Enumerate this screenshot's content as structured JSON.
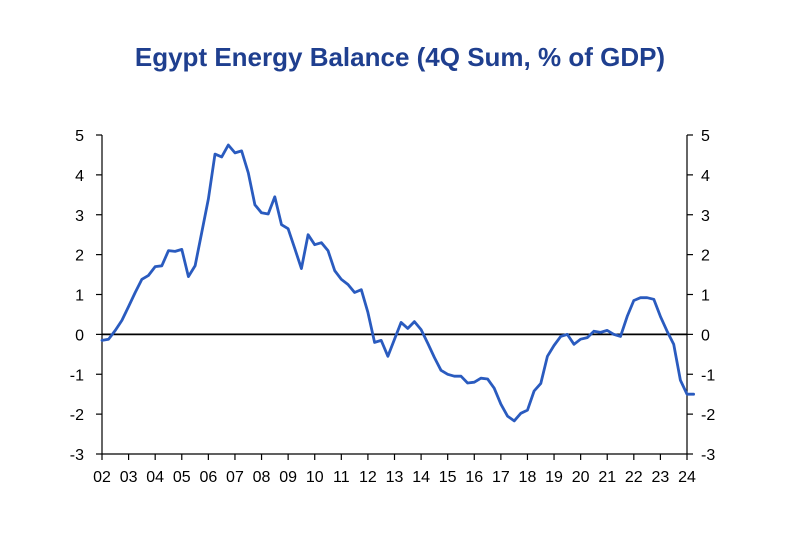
{
  "chart_data": {
    "type": "line",
    "title": "Egypt Energy Balance (4Q Sum, % of GDP)",
    "xlabel": "",
    "ylabel": "",
    "ylim": [
      -3,
      5
    ],
    "yticks": [
      "5",
      "4",
      "3",
      "2",
      "1",
      "0",
      "-1",
      "-2",
      "-3"
    ],
    "ytick_values": [
      5,
      4,
      3,
      2,
      1,
      0,
      -1,
      -2,
      -3
    ],
    "xticks": [
      "02",
      "03",
      "04",
      "05",
      "06",
      "07",
      "08",
      "09",
      "10",
      "11",
      "12",
      "13",
      "14",
      "15",
      "16",
      "17",
      "18",
      "19",
      "20",
      "21",
      "22",
      "23",
      "24"
    ],
    "x_range": [
      2002,
      2024
    ],
    "grid": false,
    "line_color": "#2a5bbf",
    "title_color": "#1f3f8f",
    "series": [
      {
        "x": [
          2002.0,
          2002.25,
          2002.5,
          2002.75,
          2003.0,
          2003.25,
          2003.5,
          2003.75,
          2004.0,
          2004.25,
          2004.5,
          2004.75,
          2005.0,
          2005.25,
          2005.5,
          2005.75,
          2006.0,
          2006.25,
          2006.5,
          2006.75,
          2007.0,
          2007.25,
          2007.5,
          2007.75,
          2008.0,
          2008.25,
          2008.5,
          2008.75,
          2009.0,
          2009.25,
          2009.5,
          2009.75,
          2010.0,
          2010.25,
          2010.5,
          2010.75,
          2011.0,
          2011.25,
          2011.5,
          2011.75,
          2012.0,
          2012.25,
          2012.5,
          2012.75,
          2013.0,
          2013.25,
          2013.5,
          2013.75,
          2014.0,
          2014.25,
          2014.5,
          2014.75,
          2015.0,
          2015.25,
          2015.5,
          2015.75,
          2016.0,
          2016.25,
          2016.5,
          2016.75,
          2017.0,
          2017.25,
          2017.5,
          2017.75,
          2018.0,
          2018.25,
          2018.5,
          2018.75,
          2019.0,
          2019.25,
          2019.5,
          2019.75,
          2020.0,
          2020.25,
          2020.5,
          2020.75,
          2021.0,
          2021.25,
          2021.5,
          2021.75,
          2022.0,
          2022.25,
          2022.5,
          2022.75,
          2023.0,
          2023.25,
          2023.5,
          2023.75,
          2024.0,
          2024.25
        ],
        "values": [
          -0.15,
          -0.12,
          0.1,
          0.35,
          0.7,
          1.05,
          1.38,
          1.48,
          1.7,
          1.72,
          2.1,
          2.08,
          2.13,
          1.45,
          1.72,
          2.55,
          3.4,
          4.52,
          4.45,
          4.75,
          4.55,
          4.6,
          4.05,
          3.25,
          3.05,
          3.02,
          3.45,
          2.75,
          2.65,
          2.15,
          1.65,
          2.5,
          2.25,
          2.3,
          2.1,
          1.6,
          1.38,
          1.25,
          1.05,
          1.12,
          0.55,
          -0.2,
          -0.15,
          -0.55,
          -0.12,
          0.3,
          0.15,
          0.32,
          0.12,
          -0.22,
          -0.58,
          -0.9,
          -1.0,
          -1.05,
          -1.05,
          -1.22,
          -1.2,
          -1.1,
          -1.12,
          -1.35,
          -1.75,
          -2.05,
          -2.17,
          -1.98,
          -1.9,
          -1.42,
          -1.23,
          -0.55,
          -0.28,
          -0.05,
          0.0,
          -0.25,
          -0.12,
          -0.08,
          0.08,
          0.05,
          0.1,
          0.0,
          -0.05,
          0.45,
          0.85,
          0.92,
          0.92,
          0.88,
          0.45,
          0.08,
          -0.25,
          -1.15,
          -1.5,
          -1.5
        ]
      }
    ]
  }
}
